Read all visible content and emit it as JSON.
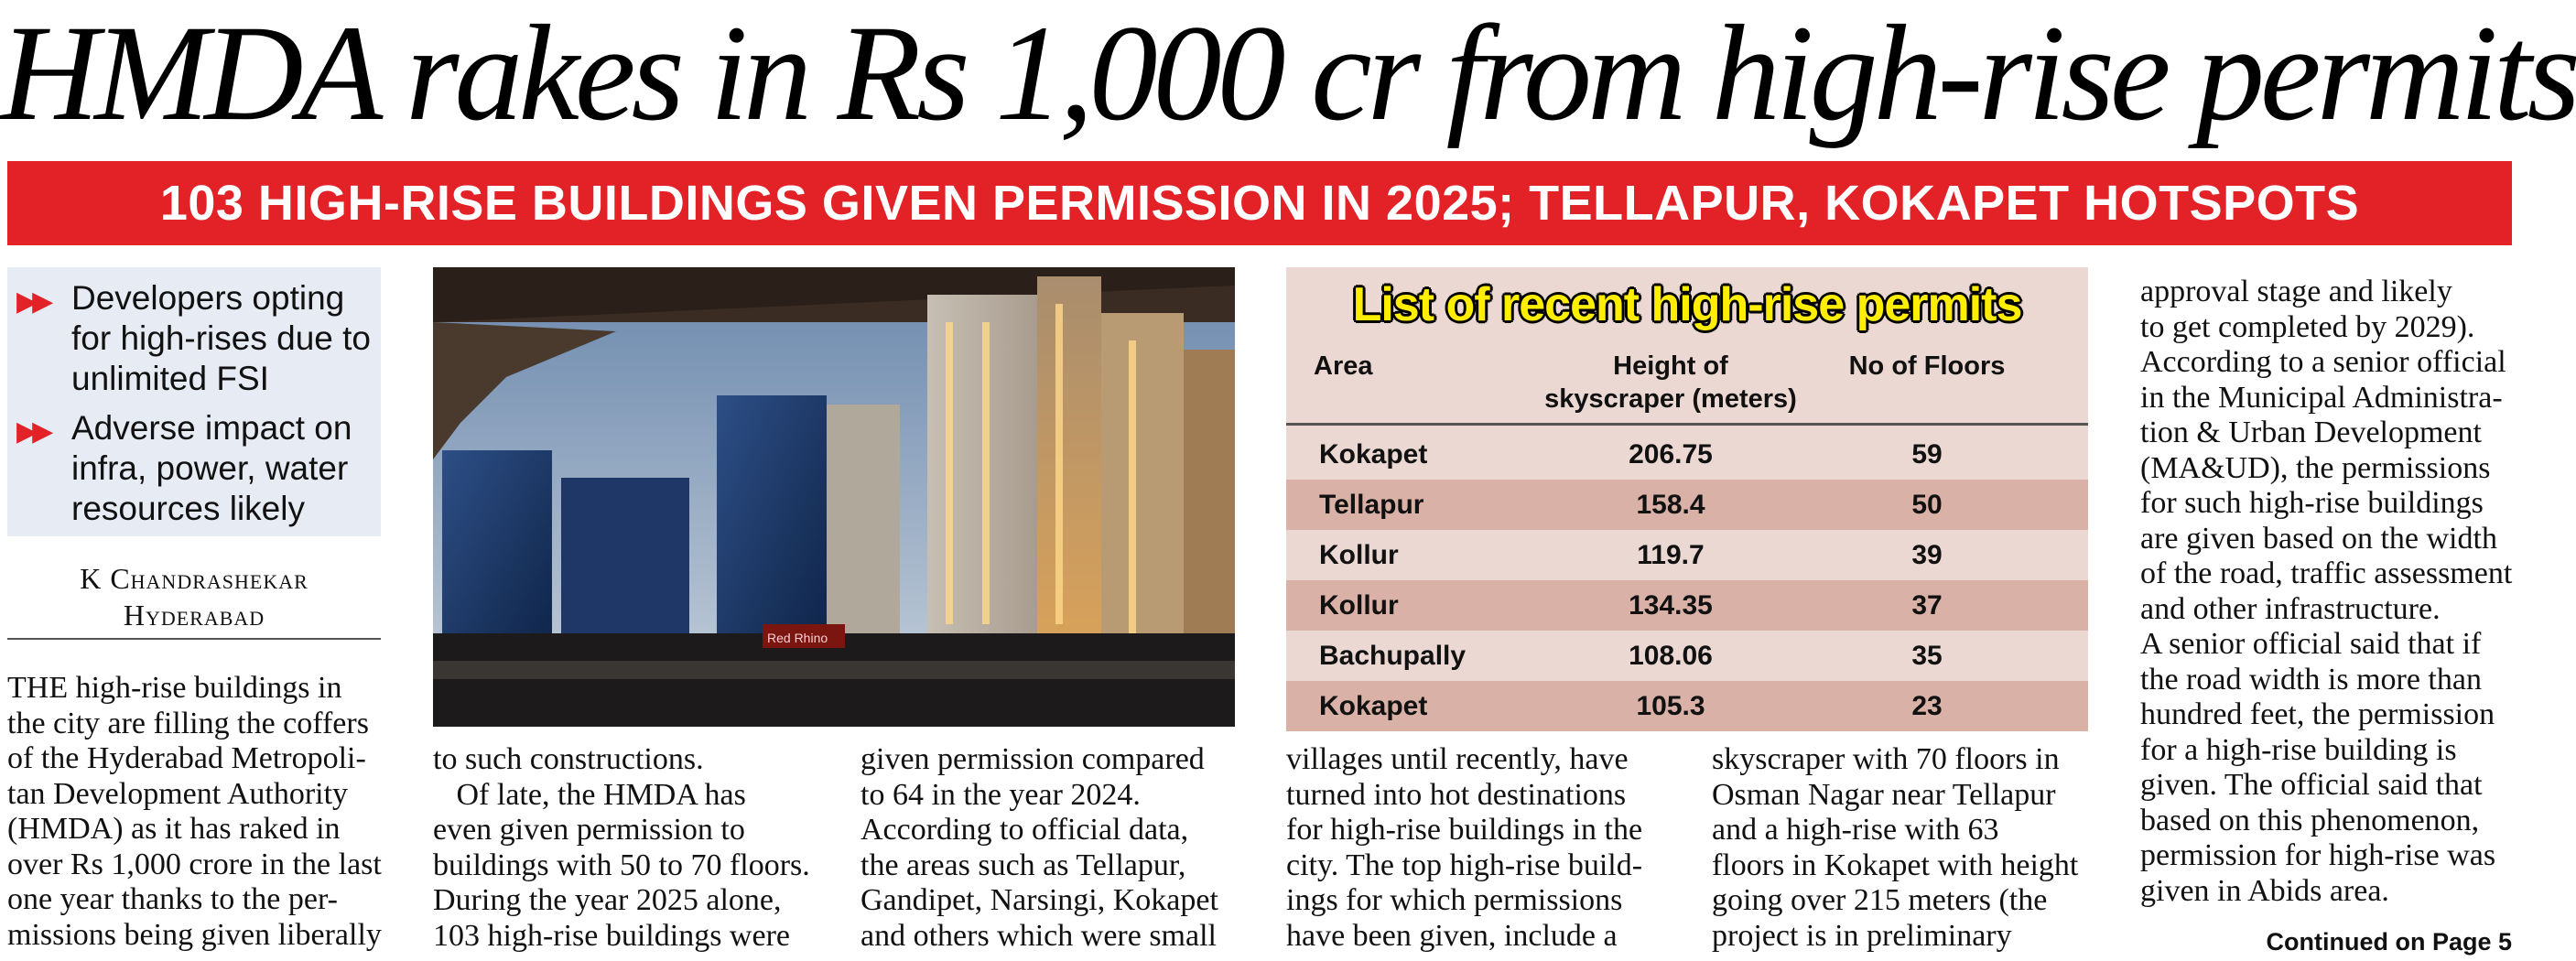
{
  "headline": "HMDA rakes in Rs 1,000 cr from high-rise permits",
  "subheadline": "103 HIGH-RISE BUILDINGS GIVEN PERMISSION IN 2025; TELLAPUR, KOKAPET HOTSPOTS",
  "highlights": [
    "Developers opting for high-rises due to unlimited FSI",
    "Adverse impact on infra, power, water resources likely"
  ],
  "byline": {
    "author": "K Chandrashekar",
    "location": "Hyderabad"
  },
  "columns": {
    "c1": "THE high-rise buildings in\nthe city are filling the coffers\nof the Hyderabad Metropoli-\ntan Development Authority\n(HMDA) as it has raked in\nover Rs 1,000 crore in the last\none year thanks to the per-\nmissions being given liberally",
    "c2": "to such constructions.\n   Of late, the HMDA has\neven given permission to\nbuildings with 50 to 70 floors.\nDuring the year 2025 alone,\n103 high-rise buildings were",
    "c3": "given permission compared\nto 64 in the year 2024.\nAccording to official data,\nthe areas such as Tellapur,\nGandipet, Narsingi, Kokapet\nand others which were small",
    "c4": "villages until recently, have\nturned into hot destinations\nfor high-rise buildings in the\ncity. The top high-rise build-\nings for which permissions\nhave been given, include a",
    "c5": "skyscraper with 70 floors in\nOsman Nagar near Tellapur\nand a high-rise with 63\nfloors in Kokapet with height\ngoing over 215 meters (the\nproject is in preliminary",
    "c6": "approval stage and likely\nto get completed by 2029).\nAccording to a senior official\nin the Municipal Administra-\ntion & Urban Development\n(MA&UD), the permissions\nfor such high-rise buildings\nare given based on the width\nof the road, traffic assessment\nand other infrastructure.\nA senior official said that if\nthe road width is more than\nhundred feet, the permission\nfor a high-rise building is\ngiven. The official said that\nbased on this phenomenon,\npermission for high-rise was\ngiven in Abids area."
  },
  "table": {
    "title": "List of recent high-rise permits",
    "headers": {
      "area": "Area",
      "height": "Height of\nskyscraper (meters)",
      "floors": "No of Floors"
    },
    "rows": [
      {
        "area": "Kokapet",
        "height": "206.75",
        "floors": "59"
      },
      {
        "area": "Tellapur",
        "height": "158.4",
        "floors": "50"
      },
      {
        "area": "Kollur",
        "height": "119.7",
        "floors": "39"
      },
      {
        "area": "Kollur",
        "height": "134.35",
        "floors": "37"
      },
      {
        "area": "Bachupally",
        "height": "108.06",
        "floors": "35"
      },
      {
        "area": "Kokapet",
        "height": "105.3",
        "floors": "23"
      }
    ]
  },
  "photo": {
    "sign": "Red Rhino"
  },
  "continued": "Continued on Page 5",
  "colors": {
    "banner": "#e32227",
    "table_bg": "#ecd8d2",
    "table_alt": "#d9b1a6",
    "highlight_bg": "#e6ebf4",
    "title_yellow": "#ffee00"
  }
}
